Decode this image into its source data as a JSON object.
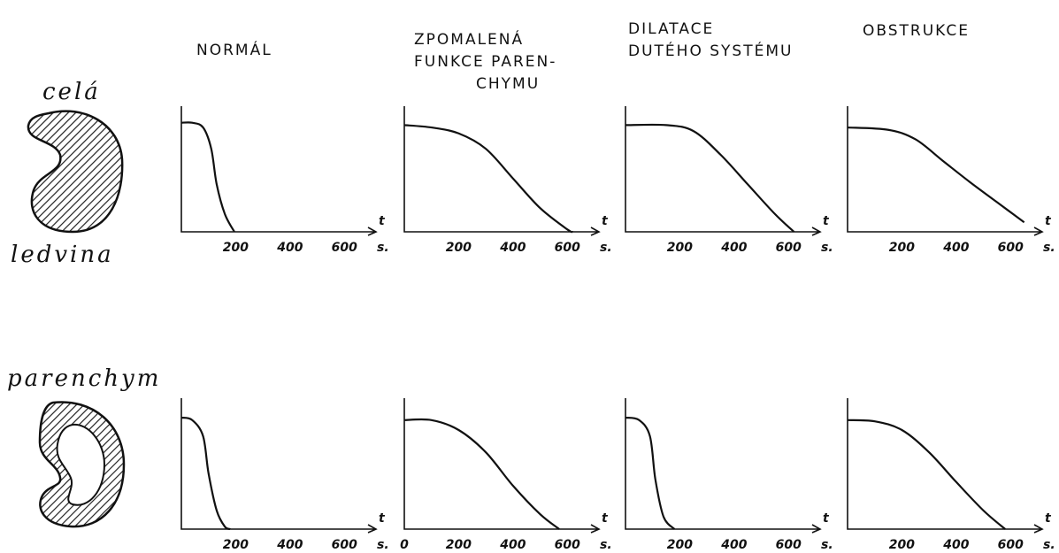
{
  "column_headers": [
    [
      "NORMÁL"
    ],
    [
      "ZPOMALENÁ",
      "FUNKCE PAREN-",
      "CHYMU"
    ],
    [
      "DILATACE",
      "DUTÉHO SYSTÉMU"
    ],
    [
      "OBSTRUKCE"
    ]
  ],
  "row_labels": {
    "top": [
      "celá",
      "ledvina"
    ],
    "bottom": [
      "parenchym"
    ]
  },
  "chart_data": [
    {
      "type": "line",
      "x": [
        0,
        40,
        80,
        110,
        130,
        160,
        195
      ],
      "values": [
        92,
        92,
        88,
        70,
        40,
        15,
        0
      ],
      "xlim": [
        0,
        700
      ],
      "ylim": [
        0,
        100
      ],
      "xticks": [
        200,
        400,
        600
      ],
      "xlabel": "t",
      "xunit": "s."
    },
    {
      "type": "line",
      "x": [
        0,
        100,
        200,
        300,
        400,
        500,
        600,
        620
      ],
      "values": [
        90,
        88,
        83,
        70,
        45,
        20,
        2,
        0
      ],
      "xlim": [
        0,
        700
      ],
      "ylim": [
        0,
        100
      ],
      "xticks": [
        200,
        400,
        600
      ],
      "xlabel": "t",
      "xunit": "s."
    },
    {
      "type": "line",
      "x": [
        0,
        150,
        250,
        350,
        450,
        550,
        620
      ],
      "values": [
        90,
        90,
        85,
        65,
        40,
        15,
        0
      ],
      "xlim": [
        0,
        700
      ],
      "ylim": [
        0,
        100
      ],
      "xticks": [
        200,
        400,
        600
      ],
      "xlabel": "t",
      "xunit": "s."
    },
    {
      "type": "line",
      "x": [
        0,
        150,
        250,
        350,
        450,
        550,
        650
      ],
      "values": [
        88,
        86,
        78,
        60,
        42,
        25,
        8
      ],
      "xlim": [
        0,
        700
      ],
      "ylim": [
        0,
        100
      ],
      "xticks": [
        200,
        400,
        600
      ],
      "xlabel": "t",
      "xunit": "s."
    },
    {
      "type": "line",
      "x": [
        0,
        40,
        80,
        100,
        130,
        160,
        180
      ],
      "values": [
        90,
        88,
        75,
        45,
        15,
        2,
        0
      ],
      "xlim": [
        0,
        700
      ],
      "ylim": [
        0,
        100
      ],
      "xticks": [
        200,
        400,
        600
      ],
      "xlabel": "t",
      "xunit": "s."
    },
    {
      "type": "line",
      "x": [
        0,
        100,
        200,
        300,
        400,
        500,
        570
      ],
      "values": [
        88,
        88,
        80,
        62,
        35,
        12,
        0
      ],
      "xlim": [
        0,
        700
      ],
      "ylim": [
        0,
        100
      ],
      "xticks": [
        0,
        200,
        400,
        600
      ],
      "xlabel": "t",
      "xunit": "s."
    },
    {
      "type": "line",
      "x": [
        0,
        50,
        90,
        110,
        140,
        180
      ],
      "values": [
        90,
        88,
        75,
        40,
        10,
        0
      ],
      "xlim": [
        0,
        700
      ],
      "ylim": [
        0,
        100
      ],
      "xticks": [
        200,
        400,
        600
      ],
      "xlabel": "t",
      "xunit": "s."
    },
    {
      "type": "line",
      "x": [
        0,
        100,
        200,
        300,
        400,
        500,
        580
      ],
      "values": [
        88,
        87,
        80,
        62,
        38,
        15,
        0
      ],
      "xlim": [
        0,
        700
      ],
      "ylim": [
        0,
        100
      ],
      "xticks": [
        200,
        400,
        600
      ],
      "xlabel": "t",
      "xunit": "s."
    }
  ]
}
